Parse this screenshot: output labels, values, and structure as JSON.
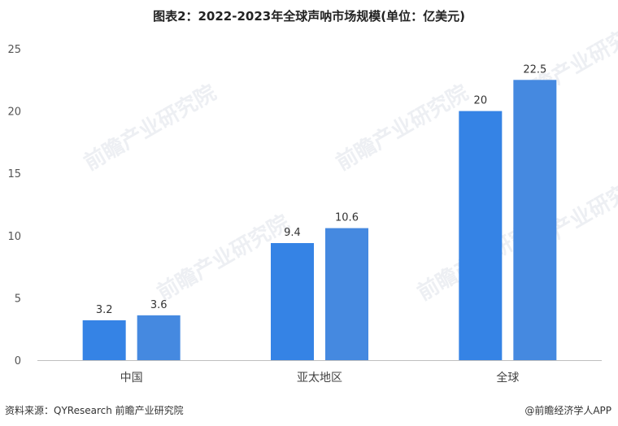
{
  "chart_data": {
    "type": "bar",
    "title": "图表2：2022-2023年全球声呐市场规模(单位：亿美元)",
    "categories": [
      "中国",
      "亚太地区",
      "全球"
    ],
    "series": [
      {
        "values": [
          3.2,
          9.4,
          20
        ]
      },
      {
        "values": [
          3.6,
          10.6,
          22.5
        ]
      }
    ],
    "data_labels": [
      [
        "3.2",
        "9.4",
        "20"
      ],
      [
        "3.6",
        "10.6",
        "22.5"
      ]
    ],
    "ylim": [
      0,
      25
    ],
    "yticks": [
      0,
      5,
      10,
      15,
      20,
      25
    ],
    "grid": false,
    "colors": [
      "#3583e5",
      "#4589e0"
    ]
  },
  "footer": {
    "source": "资料来源：QYResearch 前瞻产业研究院",
    "brand": "@前瞻经济学人APP"
  },
  "watermark": "前瞻产业研究院"
}
